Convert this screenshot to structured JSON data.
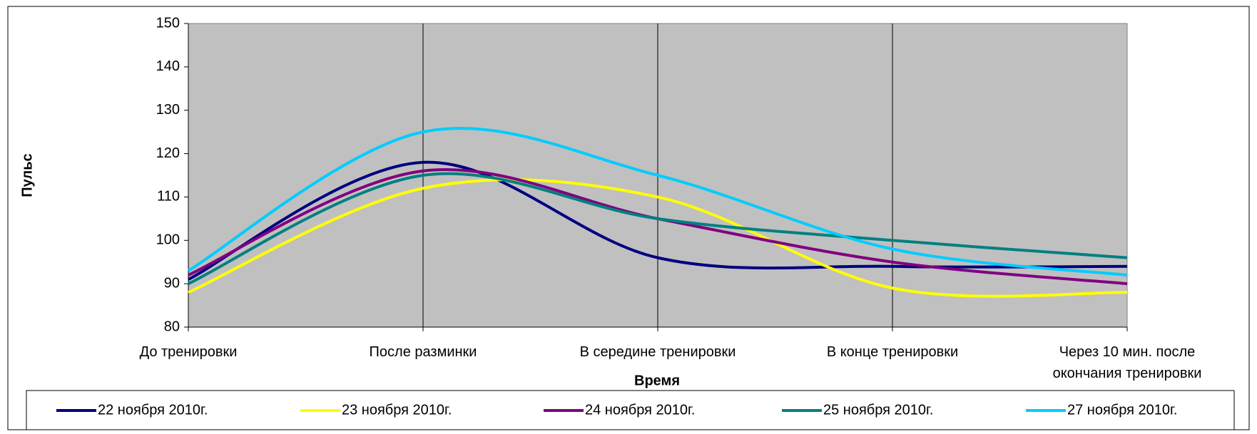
{
  "chart_data": {
    "type": "line",
    "x_label": "Время",
    "y_label": "Пульс",
    "categories": [
      "До тренировки",
      "После разминки",
      "В середине тренировки",
      "В конце тренировки",
      "Через 10 мин.  после окончания тренировки"
    ],
    "series": [
      {
        "name": "22 ноября 2010г.",
        "color": "#000080",
        "values": [
          91,
          118,
          96,
          94,
          94
        ]
      },
      {
        "name": "23 ноября 2010г.",
        "color": "#ffff00",
        "values": [
          88,
          112,
          110,
          89,
          88
        ]
      },
      {
        "name": "24 ноября 2010г.",
        "color": "#800080",
        "values": [
          92,
          116,
          105,
          95,
          90
        ]
      },
      {
        "name": "25 ноября 2010г.",
        "color": "#008080",
        "values": [
          90,
          115,
          105,
          100,
          96
        ]
      },
      {
        "name": "27 ноября 2010г.",
        "color": "#00ccff",
        "values": [
          93,
          125,
          115,
          98,
          92
        ]
      }
    ],
    "ylim": [
      80,
      150
    ],
    "yticks": [
      80,
      90,
      100,
      110,
      120,
      130,
      140,
      150
    ],
    "grid": true,
    "smooth": true,
    "plot_background": "#c0c0c0",
    "legend": "bottom"
  }
}
